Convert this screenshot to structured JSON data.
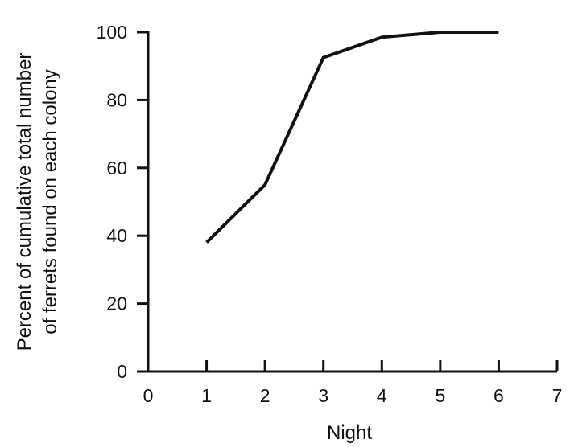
{
  "chart_data": {
    "type": "line",
    "title": "",
    "xlabel": "Night",
    "ylabel_lines": [
      "Percent of cumulative total number",
      "of ferrets found on each colony"
    ],
    "xlim": [
      0,
      7
    ],
    "ylim": [
      0,
      100
    ],
    "xticks": [
      0,
      1,
      2,
      3,
      4,
      5,
      6,
      7
    ],
    "yticks": [
      0,
      20,
      40,
      60,
      80,
      100
    ],
    "grid": false,
    "legend": "none",
    "series": [
      {
        "x": [
          1,
          2,
          3,
          4,
          5,
          6
        ],
        "y": [
          38,
          55,
          92.5,
          98.5,
          100,
          100
        ],
        "color": "#111111"
      }
    ]
  }
}
